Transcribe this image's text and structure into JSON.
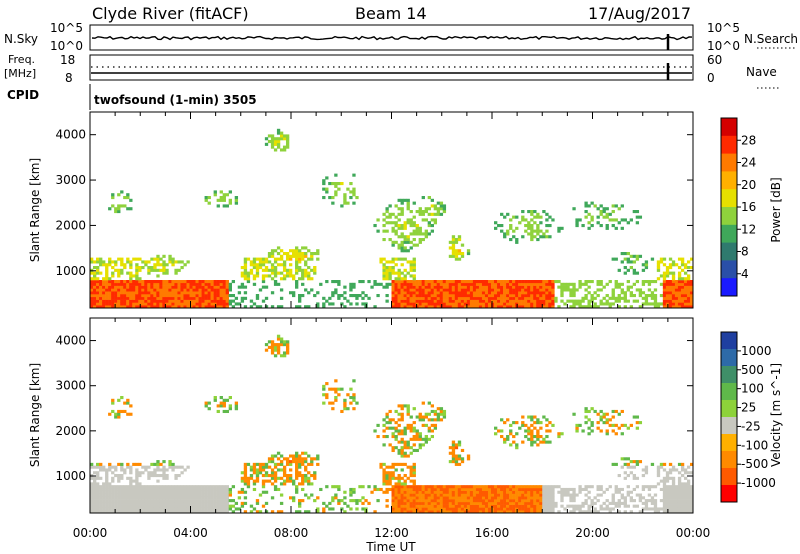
{
  "header": {
    "station": "Clyde River (fitACF)",
    "beam": "Beam 14",
    "date": "17/Aug/2017"
  },
  "top_panels": {
    "nsky_label": "N.Sky",
    "nsky_ticks": [
      "10^5",
      "10^0"
    ],
    "nsearch_label": "N.Search",
    "nsearch_ticks": [
      "10^5",
      "10^0"
    ],
    "freq_label": "Freq.",
    "freq_unit": "[MHz]",
    "freq_ticks": [
      "18",
      "8"
    ],
    "nave_label": "Nave",
    "nave_ticks": [
      "60",
      "0"
    ],
    "cpid_label": "CPID",
    "cpid_value": "twofsound (1-min) 3505"
  },
  "chart_data": [
    {
      "type": "heatmap",
      "name": "power",
      "ylabel": "Slant Range [km]",
      "yticks": [
        1000,
        2000,
        3000,
        4000
      ],
      "ylim": [
        180,
        4500
      ],
      "xticks": [
        "00:00",
        "04:00",
        "08:00",
        "12:00",
        "16:00",
        "20:00",
        "00:00"
      ],
      "xlim_hours": [
        0,
        24
      ],
      "colorbar": {
        "label": "Power [dB]",
        "ticks": [
          "28",
          "24",
          "20",
          "16",
          "12",
          "8",
          "4"
        ],
        "colors": [
          "#d40000",
          "#ff2a00",
          "#ff7a00",
          "#ffb000",
          "#e6e000",
          "#8fd23c",
          "#3fa85a",
          "#2f7a6e",
          "#2a4fa8",
          "#1a1aff"
        ]
      }
    },
    {
      "type": "heatmap",
      "name": "velocity",
      "ylabel": "Slant Range [km]",
      "yticks": [
        1000,
        2000,
        3000,
        4000
      ],
      "ylim": [
        180,
        4500
      ],
      "xticks": [
        "00:00",
        "04:00",
        "08:00",
        "12:00",
        "16:00",
        "20:00",
        "00:00"
      ],
      "xlabel": "Time UT",
      "colorbar": {
        "label": "Velocity [m s^-1]",
        "ticks": [
          "1000",
          "500",
          "100",
          "25",
          "-25",
          "-100",
          "-500",
          "-1000"
        ],
        "colors": [
          "#1f3fa0",
          "#2d6aa8",
          "#3f8f68",
          "#5fb84a",
          "#8dd23a",
          "#c8c8c0",
          "#ffb000",
          "#ff8a00",
          "#ff5a00",
          "#ff0000"
        ]
      }
    }
  ]
}
